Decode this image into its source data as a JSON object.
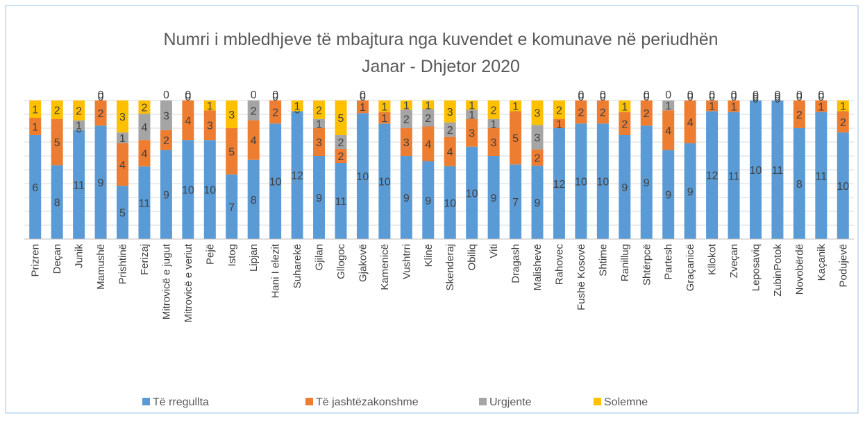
{
  "chart_data": {
    "type": "bar",
    "stacking": "percent",
    "title": [
      "Numri i mbledhjeve të mbajtura nga kuvendet e komunave në periudhën",
      "Janar - Dhjetor 2020"
    ],
    "categories": [
      "Prizren",
      "Deçan",
      "Junik",
      "Mamushë",
      "Prishtinë",
      "Ferizaj",
      "Mitrovicë e jugut",
      "Mitrovicë e veriut",
      "Pejë",
      "Istog",
      "Lipjan",
      "Hani I elezit",
      "Suharekë",
      "Gjilan",
      "Gllogoc",
      "Gjakovë",
      "Kamenicë",
      "Vushtrri",
      "Klinë",
      "Skenderaj",
      "Obiliq",
      "Viti",
      "Dragash",
      "Malishevë",
      "Rahovec",
      "Fushë Kosovë",
      "Shtime",
      "Ranillug",
      "Shtërpcë",
      "Partesh",
      "Graçanicë",
      "Kllokot",
      "Zveçan",
      "Leposaviq",
      "ZubinPotok",
      "Novobërdë",
      "Kaçanik",
      "Podujevë"
    ],
    "series": [
      {
        "name": "Të rregullta",
        "color": "#5b9bd5",
        "values": [
          6,
          8,
          11,
          9,
          5,
          11,
          9,
          10,
          10,
          7,
          8,
          10,
          12,
          9,
          11,
          10,
          10,
          9,
          9,
          10,
          10,
          9,
          7,
          9,
          12,
          10,
          10,
          9,
          9,
          9,
          9,
          12,
          11,
          10,
          11,
          8,
          11,
          10
        ]
      },
      {
        "name": "Të jashtëzakonshme",
        "color": "#ed7d31",
        "values": [
          1,
          5,
          0,
          2,
          4,
          4,
          2,
          4,
          3,
          5,
          4,
          2,
          0,
          3,
          2,
          1,
          1,
          3,
          4,
          4,
          3,
          3,
          5,
          2,
          1,
          2,
          2,
          2,
          2,
          4,
          4,
          1,
          1,
          0,
          0,
          2,
          1,
          2
        ]
      },
      {
        "name": "Urgjente",
        "color": "#a5a5a5",
        "values": [
          0,
          0,
          1,
          0,
          1,
          4,
          3,
          0,
          0,
          0,
          2,
          0,
          0,
          1,
          2,
          0,
          0,
          2,
          2,
          2,
          1,
          1,
          0,
          3,
          0,
          0,
          0,
          0,
          0,
          1,
          0,
          0,
          0,
          0,
          0,
          0,
          0,
          0
        ]
      },
      {
        "name": "Solemne",
        "color": "#ffc000",
        "values": [
          1,
          2,
          2,
          0,
          3,
          2,
          0,
          0,
          1,
          3,
          0,
          0,
          1,
          2,
          5,
          0,
          1,
          1,
          1,
          3,
          1,
          2,
          1,
          3,
          2,
          0,
          0,
          1,
          0,
          0,
          0,
          0,
          0,
          0,
          0,
          0,
          0,
          1
        ]
      }
    ],
    "grid": true,
    "legend": "bottom"
  }
}
